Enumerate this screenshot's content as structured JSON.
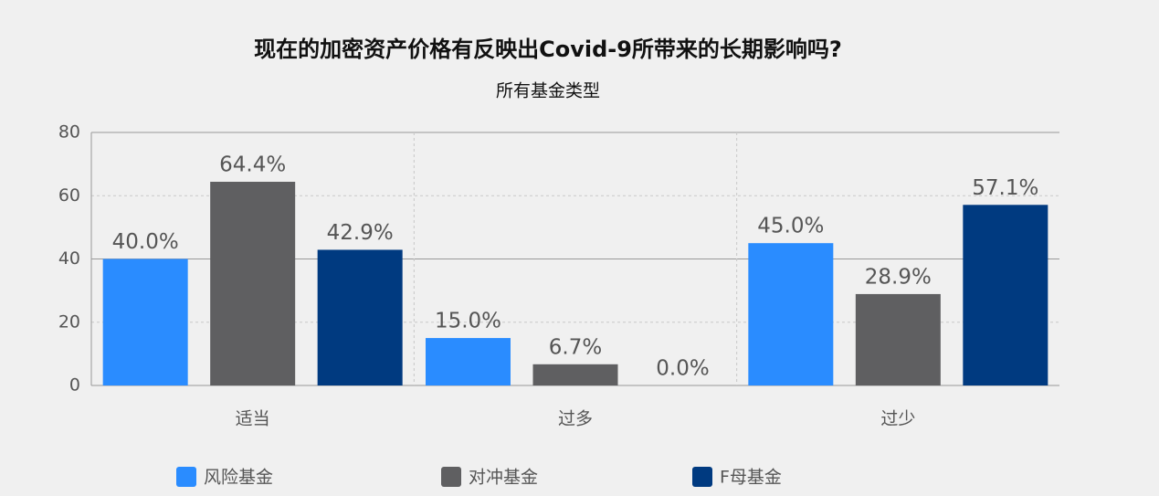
{
  "chart_data": {
    "type": "bar",
    "title": "现在的加密资产价格有反映出Covid-9所带来的长期影响吗?",
    "subtitle": "所有基金类型",
    "categories": [
      "适当",
      "过多",
      "过少"
    ],
    "series": [
      {
        "name": "风险基金",
        "color": "#2a8cff",
        "values": [
          40.0,
          15.0,
          45.0
        ],
        "value_labels": [
          "40.0%",
          "15.0%",
          "45.0%"
        ]
      },
      {
        "name": "对冲基金",
        "color": "#5f5f61",
        "values": [
          64.4,
          6.7,
          28.9
        ],
        "value_labels": [
          "64.4%",
          "6.7%",
          "28.9%"
        ]
      },
      {
        "name": "F母基金",
        "color": "#003a80",
        "values": [
          42.9,
          0.0,
          57.1
        ],
        "value_labels": [
          "42.9%",
          "0.0%",
          "57.1%"
        ]
      }
    ],
    "ylim": [
      0,
      80
    ],
    "yticks": [
      0,
      20,
      40,
      60,
      80
    ],
    "grid": true
  }
}
